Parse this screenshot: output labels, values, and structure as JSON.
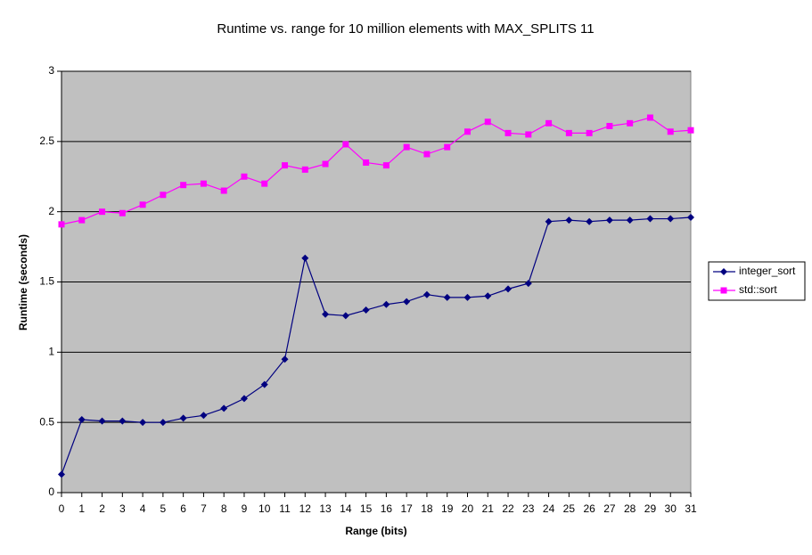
{
  "chart_data": {
    "type": "line",
    "title": "Runtime vs. range for 10 million elements with MAX_SPLITS 11",
    "x_label": "Range (bits)",
    "y_label": "Runtime (seconds)",
    "x": [
      0,
      1,
      2,
      3,
      4,
      5,
      6,
      7,
      8,
      9,
      10,
      11,
      12,
      13,
      14,
      15,
      16,
      17,
      18,
      19,
      20,
      21,
      22,
      23,
      24,
      25,
      26,
      27,
      28,
      29,
      30,
      31
    ],
    "xlim": [
      0,
      31
    ],
    "xticks": [
      0,
      1,
      2,
      3,
      4,
      5,
      6,
      7,
      8,
      9,
      10,
      11,
      12,
      13,
      14,
      15,
      16,
      17,
      18,
      19,
      20,
      21,
      22,
      23,
      24,
      25,
      26,
      27,
      28,
      29,
      30,
      31
    ],
    "ylim": [
      0,
      3
    ],
    "yticks": [
      0,
      0.5,
      1,
      1.5,
      2,
      2.5,
      3
    ],
    "grid": true,
    "legend": "right",
    "series": [
      {
        "name": "integer_sort",
        "color": "#000080",
        "marker": "diamond",
        "values": [
          0.13,
          0.52,
          0.51,
          0.51,
          0.5,
          0.5,
          0.53,
          0.55,
          0.6,
          0.67,
          0.77,
          0.95,
          1.67,
          1.27,
          1.26,
          1.3,
          1.34,
          1.36,
          1.41,
          1.39,
          1.39,
          1.4,
          1.45,
          1.49,
          1.93,
          1.94,
          1.93,
          1.94,
          1.94,
          1.95,
          1.95,
          1.96
        ]
      },
      {
        "name": "std::sort",
        "color": "#ff00ff",
        "marker": "square",
        "values": [
          1.91,
          1.94,
          2.0,
          1.99,
          2.05,
          2.12,
          2.19,
          2.2,
          2.15,
          2.25,
          2.2,
          2.33,
          2.3,
          2.34,
          2.48,
          2.35,
          2.33,
          2.46,
          2.41,
          2.46,
          2.57,
          2.64,
          2.56,
          2.55,
          2.63,
          2.56,
          2.56,
          2.61,
          2.63,
          2.67,
          2.57,
          2.58
        ]
      }
    ]
  }
}
